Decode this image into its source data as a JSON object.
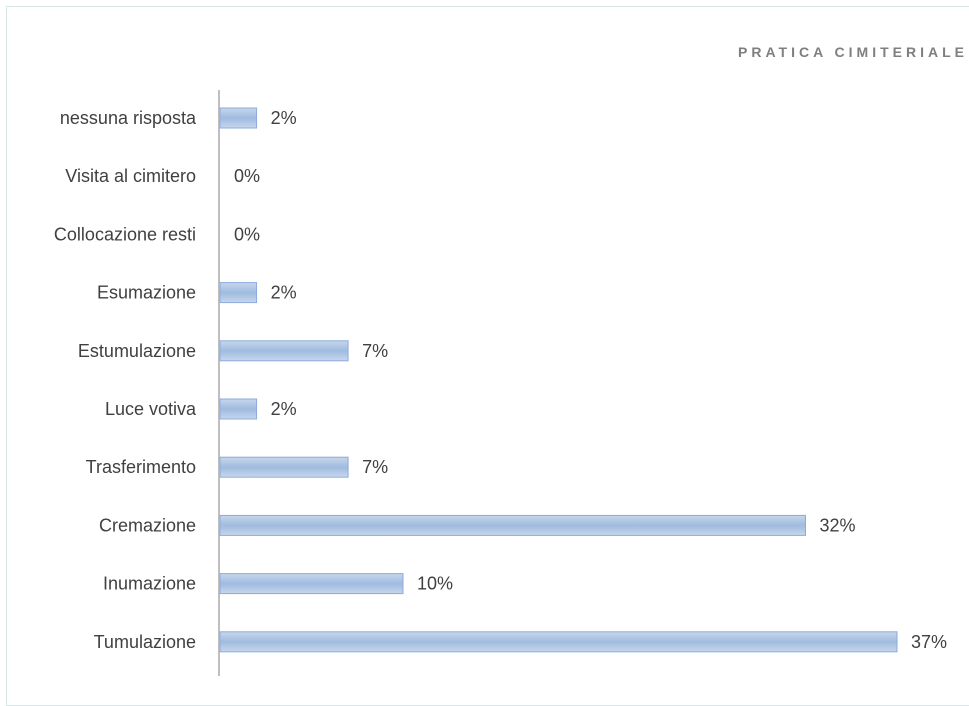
{
  "chart_data": {
    "type": "bar",
    "orientation": "horizontal",
    "title": "PRATICA CIMITERIALE",
    "categories": [
      "nessuna risposta",
      "Visita al cimitero",
      "Collocazione resti",
      "Esumazione",
      "Estumulazione",
      "Luce votiva",
      "Trasferimento",
      "Cremazione",
      "Inumazione",
      "Tumulazione"
    ],
    "values": [
      2,
      0,
      0,
      2,
      7,
      2,
      7,
      32,
      10,
      37
    ],
    "value_labels": [
      "2%",
      "0%",
      "0%",
      "2%",
      "7%",
      "2%",
      "7%",
      "32%",
      "10%",
      "37%"
    ],
    "unit": "%",
    "xlim": [
      0,
      37
    ],
    "grid": false,
    "legend": "none",
    "colors": {
      "bar": "#b8cce4",
      "bar_edge": "#8eaadb",
      "axis": "#bfbfbf",
      "text": "#404040",
      "title": "#7f7f7f"
    }
  }
}
